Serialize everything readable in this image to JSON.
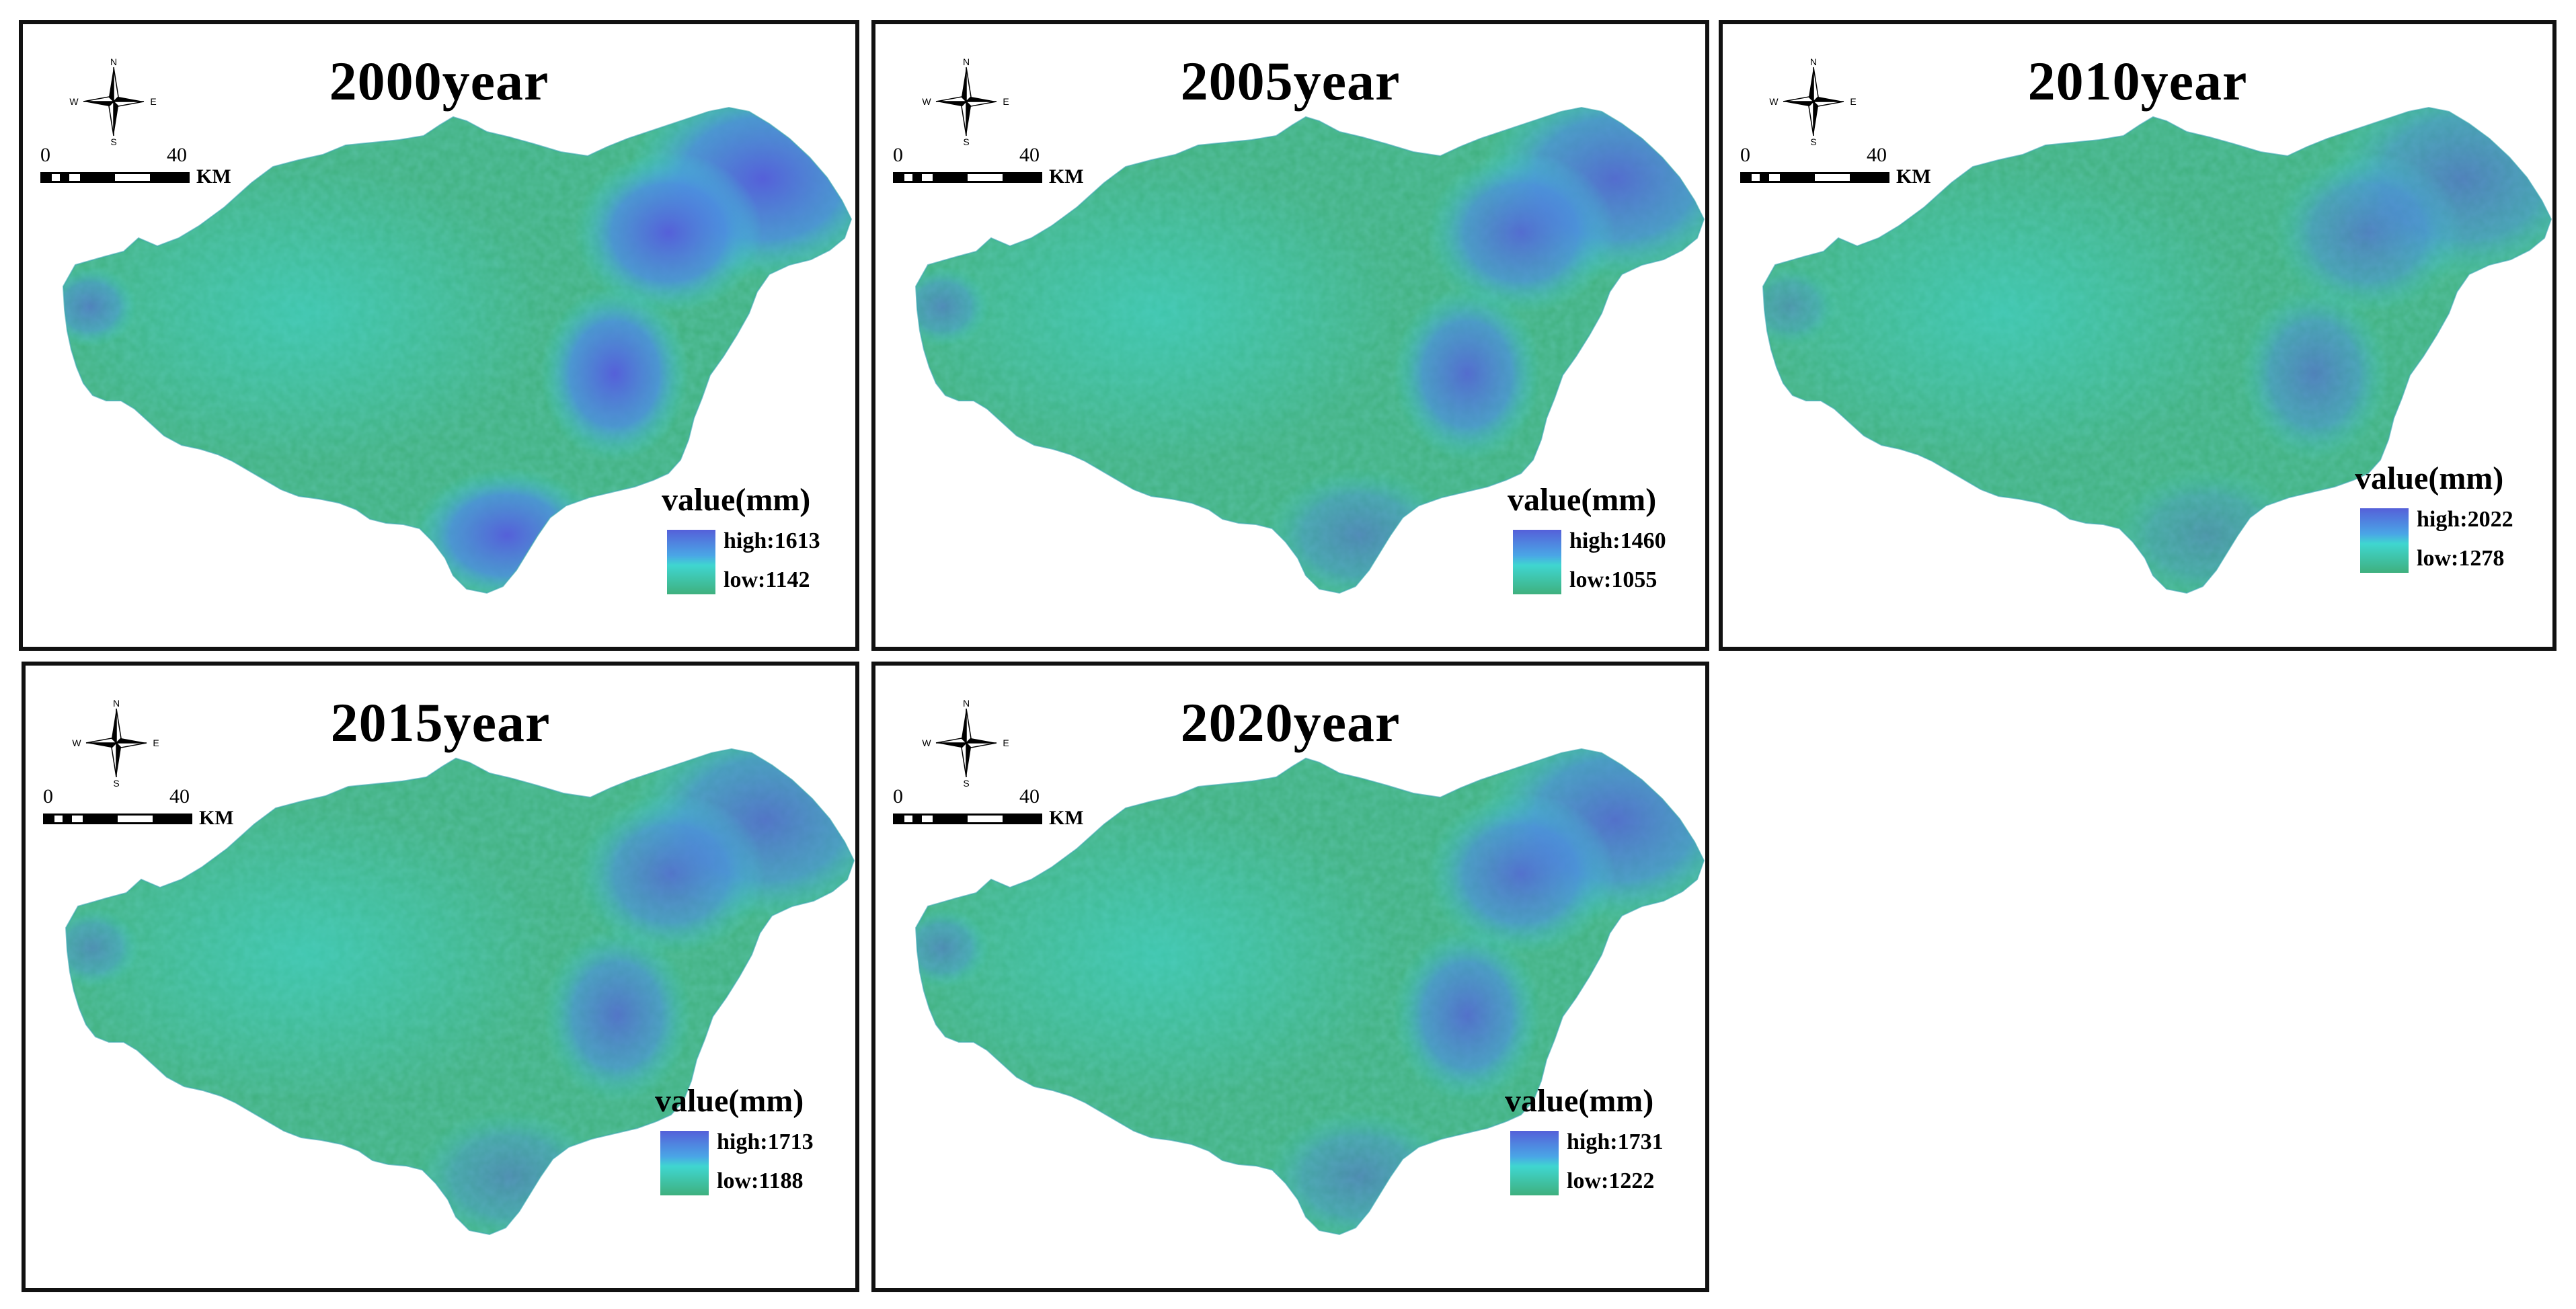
{
  "legend_title": "value(mm)",
  "scale": {
    "zero": "0",
    "forty": "40",
    "unit": "KM"
  },
  "compass": {
    "n": "N",
    "s": "S",
    "e": "E",
    "w": "W"
  },
  "colors": {
    "low": "#3fb07e",
    "mid": "#3fd6d0",
    "high": "#5560d9",
    "border": "#111111"
  },
  "panels": [
    {
      "title": "2000year",
      "high": "high:1613",
      "low": "low:1142"
    },
    {
      "title": "2005year",
      "high": "high:1460",
      "low": "low:1055"
    },
    {
      "title": "2010year",
      "high": "high:2022",
      "low": "low:1278"
    },
    {
      "title": "2015year",
      "high": "high:1713",
      "low": "low:1188"
    },
    {
      "title": "2020year",
      "high": "high:1731",
      "low": "low:1222"
    }
  ]
}
